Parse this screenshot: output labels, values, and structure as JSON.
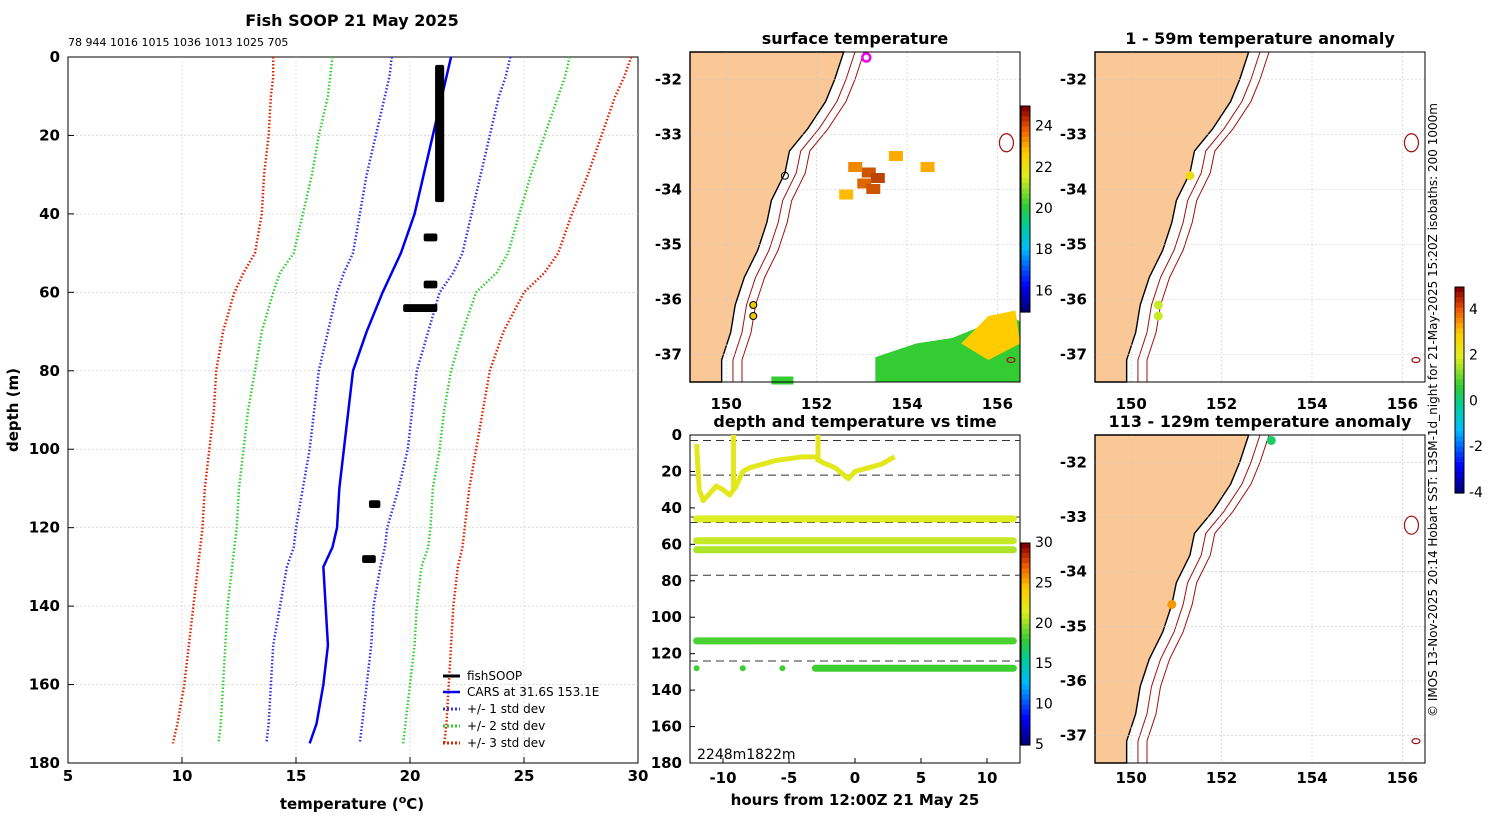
{
  "profile": {
    "title": "Fish SOOP 21 May 2025",
    "counts_label": "78 944 1016 1015 1036 1013 1025 705",
    "xlabel_prefix": "temperature (",
    "xlabel_sup": "o",
    "xlabel_suffix": "C)",
    "ylabel": "depth (m)",
    "legend": [
      "fishSOOP",
      "CARS at 31.6S 153.1E",
      "+/- 1 std dev",
      "+/- 2 std dev",
      "+/- 3 std dev"
    ]
  },
  "surface_map": {
    "title": "surface temperature"
  },
  "time_series": {
    "title": "depth and temperature vs time",
    "xlabel": "hours from 12:00Z 21 May 25",
    "bottom_label": "2248m1822m"
  },
  "anom_map_1": {
    "title": "1 - 59m temperature anomaly"
  },
  "anom_map_2": {
    "title": "113 - 129m temperature anomaly"
  },
  "side_note": "© IMOS 13-Nov-2025 20:14 Hobart SST: L3SM-1d_night for 21-May-2025 15:20Z isobaths: 200  1000m",
  "colors": {
    "cars": "#0000ee",
    "std1": "#3333dd",
    "std2": "#33cc33",
    "std3": "#dd2200",
    "land": "#f9c896",
    "fish": "#000000"
  },
  "chart_data": [
    {
      "type": "line",
      "title": "Fish SOOP 21 May 2025",
      "xlabel": "temperature (oC)",
      "ylabel": "depth (m)",
      "xlim": [
        5,
        30
      ],
      "ylim": [
        180,
        0
      ],
      "xticks": [
        5,
        10,
        15,
        20,
        25,
        30
      ],
      "yticks": [
        0,
        20,
        40,
        60,
        80,
        100,
        120,
        140,
        160,
        180
      ],
      "depth": [
        0,
        5,
        10,
        20,
        30,
        40,
        50,
        55,
        60,
        70,
        80,
        90,
        100,
        110,
        120,
        125,
        130,
        140,
        150,
        160,
        170,
        175
      ],
      "series": [
        {
          "name": "CARS at 31.6S 153.1E",
          "style": "solid",
          "color": "#0000ee",
          "values": [
            21.8,
            21.6,
            21.4,
            21.0,
            20.6,
            20.2,
            19.6,
            19.2,
            18.8,
            18.1,
            17.5,
            17.3,
            17.1,
            16.9,
            16.8,
            16.6,
            16.2,
            16.3,
            16.4,
            16.2,
            15.9,
            15.6
          ]
        },
        {
          "name": "+/- 1 std dev",
          "style": "dotted",
          "color": "#3333dd",
          "lower": [
            19.2,
            19.1,
            18.9,
            18.5,
            18.1,
            17.8,
            17.5,
            17.1,
            16.8,
            16.4,
            16.0,
            15.8,
            15.6,
            15.3,
            15.0,
            14.9,
            14.6,
            14.3,
            14.0,
            13.9,
            13.8,
            13.7
          ],
          "upper": [
            24.4,
            24.2,
            23.9,
            23.5,
            23.1,
            22.7,
            22.3,
            21.9,
            21.3,
            20.8,
            20.3,
            20.1,
            19.9,
            19.5,
            19.0,
            18.9,
            18.7,
            18.4,
            18.3,
            18.1,
            17.9,
            17.8
          ]
        },
        {
          "name": "+/- 2 std dev",
          "style": "dotted",
          "color": "#33cc33",
          "lower": [
            16.6,
            16.5,
            16.4,
            16.0,
            15.7,
            15.3,
            14.9,
            14.3,
            14.0,
            13.5,
            13.2,
            12.9,
            12.7,
            12.5,
            12.4,
            12.3,
            12.2,
            12.0,
            11.9,
            11.8,
            11.7,
            11.6
          ],
          "upper": [
            27.0,
            26.8,
            26.5,
            25.9,
            25.3,
            24.8,
            24.3,
            23.8,
            22.9,
            22.3,
            21.8,
            21.5,
            21.3,
            21.0,
            20.9,
            20.8,
            20.5,
            20.3,
            20.2,
            20.0,
            19.8,
            19.7
          ]
        },
        {
          "name": "+/- 3 std dev",
          "style": "dotted",
          "color": "#dd2200",
          "lower": [
            14.0,
            14.0,
            13.9,
            13.8,
            13.6,
            13.5,
            13.2,
            12.7,
            12.3,
            11.8,
            11.5,
            11.4,
            11.2,
            11.0,
            10.9,
            10.8,
            10.7,
            10.5,
            10.3,
            10.1,
            9.8,
            9.6
          ],
          "upper": [
            29.7,
            29.4,
            29.0,
            28.4,
            27.8,
            27.1,
            26.5,
            25.9,
            25.0,
            24.1,
            23.5,
            23.2,
            22.9,
            22.6,
            22.4,
            22.3,
            22.1,
            21.9,
            21.8,
            21.7,
            21.6,
            21.5
          ]
        }
      ],
      "fishSOOP": [
        {
          "t": [
            21.1,
            21.5
          ],
          "depth_range": [
            2,
            37
          ]
        },
        {
          "t": [
            20.6,
            21.2
          ],
          "depth_range": [
            45,
            47
          ]
        },
        {
          "t": [
            20.6,
            21.2
          ],
          "depth_range": [
            57,
            59
          ]
        },
        {
          "t": [
            19.7,
            21.2
          ],
          "depth_range": [
            63,
            65
          ]
        },
        {
          "t": [
            18.2,
            18.7
          ],
          "depth_range": [
            113,
            115
          ]
        },
        {
          "t": [
            17.9,
            18.5
          ],
          "depth_range": [
            127,
            129
          ]
        }
      ]
    },
    {
      "type": "heatmap",
      "title": "surface temperature",
      "xlim": [
        149.2,
        156.5
      ],
      "ylim": [
        -37.5,
        -31.5
      ],
      "xticks": [
        150,
        152,
        154,
        156
      ],
      "yticks": [
        -32,
        -33,
        -34,
        -35,
        -36,
        -37
      ],
      "colorbar": {
        "range": [
          15,
          25
        ],
        "ticks": [
          16,
          18,
          20,
          22,
          24
        ]
      }
    },
    {
      "type": "scatter",
      "title": "depth and temperature vs time",
      "xlabel": "hours from 12:00Z 21 May 25",
      "xlim": [
        -12.5,
        12.5
      ],
      "ylim": [
        180,
        0
      ],
      "xticks": [
        -10,
        -5,
        0,
        5,
        10
      ],
      "yticks": [
        0,
        20,
        40,
        60,
        80,
        100,
        120,
        140,
        160,
        180
      ],
      "dashed_depths": [
        3,
        22,
        45,
        48,
        77,
        124
      ],
      "colorbar": {
        "range": [
          5,
          30
        ],
        "ticks": [
          5,
          10,
          15,
          20,
          25,
          30
        ]
      },
      "tracks": [
        {
          "depth": 46,
          "t_start": -12,
          "t_end": 12,
          "temp": 21.5
        },
        {
          "depth": 58,
          "t_start": -12,
          "t_end": 12,
          "temp": 21
        },
        {
          "depth": 63,
          "t_start": -12,
          "t_end": 12,
          "temp": 20.5
        },
        {
          "depth": 113,
          "t_start": -12,
          "t_end": 12,
          "temp": 18.5
        },
        {
          "depth": 128,
          "t_start": -3,
          "t_end": 12,
          "temp": 18.2
        }
      ],
      "surface_track": {
        "time": [
          -12,
          -11.8,
          -11.5,
          -11,
          -10.5,
          -10,
          -9.5,
          -9,
          -8.5,
          -8,
          -7,
          -6,
          -5,
          -4,
          -3,
          -2.5,
          -1.5,
          -0.5,
          0,
          0.5,
          1,
          2,
          3
        ],
        "depth": [
          5,
          30,
          36,
          32,
          28,
          30,
          33,
          28,
          20,
          18,
          16,
          14,
          13,
          12,
          12,
          15,
          18,
          24,
          20,
          19,
          18,
          16,
          12
        ],
        "temp": 22
      },
      "gap_points": [
        {
          "time": -12,
          "depth": 128
        },
        {
          "time": -8.5,
          "depth": 128
        },
        {
          "time": -5.5,
          "depth": 128
        }
      ]
    },
    {
      "type": "scatter",
      "title": "1 - 59m temperature anomaly",
      "xlim": [
        149.2,
        156.5
      ],
      "ylim": [
        -37.5,
        -31.5
      ],
      "xticks": [
        150,
        152,
        154,
        156
      ],
      "yticks": [
        -32,
        -33,
        -34,
        -35,
        -36,
        -37
      ],
      "points": [
        {
          "lon": 151.3,
          "lat": -33.75,
          "anomaly": 2.5
        },
        {
          "lon": 150.6,
          "lat": -36.1,
          "anomaly": 1.8
        },
        {
          "lon": 150.6,
          "lat": -36.3,
          "anomaly": 1.8
        }
      ]
    },
    {
      "type": "scatter",
      "title": "113 - 129m temperature anomaly",
      "xlim": [
        149.2,
        156.5
      ],
      "ylim": [
        -37.5,
        -31.5
      ],
      "xticks": [
        150,
        152,
        154,
        156
      ],
      "yticks": [
        -32,
        -33,
        -34,
        -35,
        -36,
        -37
      ],
      "colorbar": {
        "range": [
          -4,
          5
        ],
        "ticks": [
          4,
          2,
          0,
          -2,
          -4
        ]
      },
      "points": [
        {
          "lon": 153.1,
          "lat": -31.6,
          "anomaly": 0.2
        },
        {
          "lon": 150.9,
          "lat": -34.6,
          "anomaly": 3.5
        }
      ]
    }
  ]
}
